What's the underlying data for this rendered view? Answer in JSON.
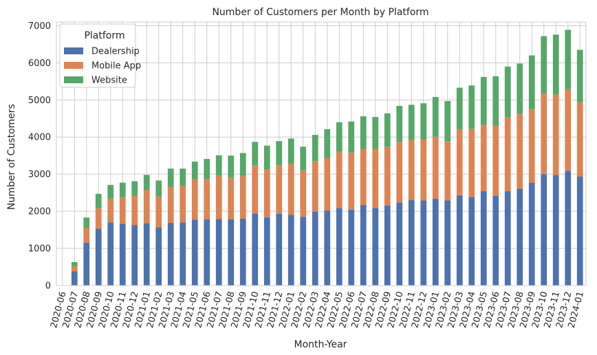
{
  "chart_data": {
    "type": "bar",
    "stacked": true,
    "title": "Number of Customers per Month by Platform",
    "xlabel": "Month-Year",
    "ylabel": "Number of Customers",
    "ylim": [
      0,
      7100
    ],
    "yticks": [
      0,
      1000,
      2000,
      3000,
      4000,
      5000,
      6000,
      7000
    ],
    "grid": true,
    "legend": {
      "title": "Platform",
      "position": "top-left"
    },
    "categories": [
      "2020-06",
      "2020-07",
      "2020-08",
      "2020-09",
      "2020-10",
      "2020-11",
      "2020-12",
      "2021-01",
      "2021-02",
      "2021-03",
      "2021-04",
      "2021-05",
      "2021-06",
      "2021-07",
      "2021-08",
      "2021-09",
      "2021-10",
      "2021-11",
      "2021-12",
      "2022-01",
      "2022-02",
      "2022-03",
      "2022-04",
      "2022-05",
      "2022-06",
      "2022-07",
      "2022-08",
      "2022-09",
      "2022-10",
      "2022-11",
      "2022-12",
      "2023-01",
      "2023-02",
      "2023-03",
      "2023-04",
      "2023-05",
      "2023-06",
      "2023-07",
      "2023-08",
      "2023-09",
      "2023-10",
      "2023-11",
      "2023-12",
      "2024-01"
    ],
    "series": [
      {
        "name": "Dealership",
        "color": "#4c72b0",
        "values": [
          0,
          380,
          1150,
          1530,
          1700,
          1660,
          1630,
          1680,
          1570,
          1690,
          1700,
          1770,
          1780,
          1790,
          1780,
          1800,
          1940,
          1840,
          1930,
          1900,
          1850,
          1990,
          2020,
          2090,
          2040,
          2170,
          2090,
          2150,
          2240,
          2300,
          2290,
          2340,
          2290,
          2430,
          2380,
          2540,
          2410,
          2540,
          2610,
          2770,
          3000,
          2980,
          3090,
          2940
        ]
      },
      {
        "name": "Mobile App",
        "color": "#dd8452",
        "values": [
          0,
          140,
          400,
          560,
          640,
          720,
          790,
          890,
          830,
          970,
          990,
          1090,
          1090,
          1170,
          1140,
          1150,
          1300,
          1290,
          1310,
          1380,
          1250,
          1360,
          1410,
          1510,
          1540,
          1510,
          1590,
          1590,
          1630,
          1620,
          1640,
          1670,
          1600,
          1780,
          1840,
          1790,
          1890,
          2000,
          2010,
          1990,
          2180,
          2170,
          2200,
          2000
        ]
      },
      {
        "name": "Website",
        "color": "#55a868",
        "values": [
          0,
          110,
          280,
          380,
          370,
          390,
          390,
          410,
          430,
          490,
          460,
          480,
          540,
          550,
          580,
          620,
          630,
          640,
          650,
          680,
          640,
          710,
          780,
          800,
          840,
          880,
          860,
          900,
          970,
          950,
          980,
          1070,
          1080,
          1120,
          1170,
          1290,
          1340,
          1360,
          1360,
          1440,
          1540,
          1610,
          1600,
          1410
        ]
      }
    ]
  }
}
